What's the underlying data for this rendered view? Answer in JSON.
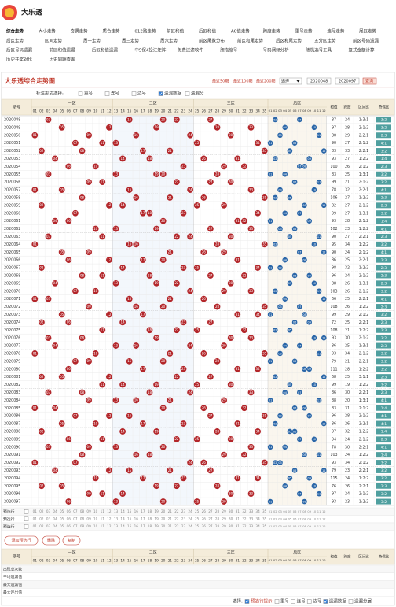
{
  "header": {
    "title": "大乐透"
  },
  "nav": [
    [
      "综合走势",
      "大小走势",
      "奇偶走势",
      "质合走势",
      "012路走势",
      "前区和值",
      "后区和值",
      "AC值走势",
      "跨度走势",
      "重号走势",
      "连号走势",
      "尾区走势"
    ],
    [
      "后区走势",
      "区间走势",
      "周一走势",
      "周三走势",
      "周六走势",
      "前区尾数分布",
      "前区和尾走势",
      "后区和尾走势",
      "五分区走势",
      "前区号码遗漏"
    ],
    [
      "后区号码遗漏",
      "前区和值遗漏",
      "后区和值遗漏",
      "中5保4投注矩阵",
      "免费过滤软件",
      "胆拖缩号",
      "号码调频分析",
      "随机选号工具",
      "复式金额计算"
    ],
    [
      "历史开奖对比",
      "历史同期查询"
    ]
  ],
  "panel": {
    "title": "大乐透综合走势图",
    "quick": [
      "最近50期",
      "最近100期",
      "最近200期"
    ],
    "select": "选择",
    "from": "2020048",
    "to": "2020097",
    "query": "查询"
  },
  "options": {
    "label": "标注形式选择:",
    "items": [
      {
        "label": "重号",
        "checked": false
      },
      {
        "label": "连号",
        "checked": false
      },
      {
        "label": "边号",
        "checked": false
      },
      {
        "label": "遗漏数据",
        "checked": true
      },
      {
        "label": "遗漏分",
        "checked": false
      }
    ]
  },
  "table": {
    "issue_header": "期号",
    "groups": [
      "一区",
      "二区",
      "三区",
      "后区"
    ],
    "front_numbers": [
      "01",
      "02",
      "03",
      "04",
      "05",
      "06",
      "07",
      "08",
      "09",
      "10",
      "11",
      "12",
      "13",
      "14",
      "15",
      "16",
      "17",
      "18",
      "19",
      "20",
      "21",
      "22",
      "23",
      "24",
      "25",
      "26",
      "27",
      "28",
      "29",
      "30",
      "31",
      "32",
      "33",
      "34",
      "35"
    ],
    "back_numbers": [
      "01",
      "02",
      "03",
      "04",
      "05",
      "06",
      "07",
      "08",
      "09",
      "10",
      "11",
      "12"
    ],
    "stat_headers": [
      "和值",
      "跨度",
      "区间比",
      "奇偶比"
    ],
    "rows": [
      {
        "issue": "2020048",
        "front": [
          "03",
          "15",
          "20",
          "22",
          "27"
        ],
        "back": [
          "02",
          "07"
        ],
        "sum": 87,
        "span": 24,
        "zone": "1:3:1",
        "odd_even": "3:2"
      },
      {
        "issue": "2020049",
        "front": [
          "05",
          "12",
          "19",
          "28",
          "33"
        ],
        "back": [
          "04",
          "10"
        ],
        "sum": 97,
        "span": 28,
        "zone": "2:1:2",
        "odd_even": "3:2"
      },
      {
        "issue": "2020050",
        "front": [
          "01",
          "09",
          "16",
          "24",
          "30"
        ],
        "back": [
          "03",
          "11"
        ],
        "sum": 80,
        "span": 29,
        "zone": "2:2:1",
        "odd_even": "2:3"
      },
      {
        "issue": "2020051",
        "front": [
          "07",
          "11",
          "13",
          "25",
          "34"
        ],
        "back": [
          "01",
          "06"
        ],
        "sum": 90,
        "span": 27,
        "zone": "2:1:2",
        "odd_even": "4:1"
      },
      {
        "issue": "2020052",
        "front": [
          "02",
          "08",
          "17",
          "21",
          "35"
        ],
        "back": [
          "05",
          "12"
        ],
        "sum": 83,
        "span": 33,
        "zone": "2:2:1",
        "odd_even": "3:2"
      },
      {
        "issue": "2020053",
        "front": [
          "04",
          "14",
          "18",
          "26",
          "31"
        ],
        "back": [
          "02",
          "09"
        ],
        "sum": 93,
        "span": 27,
        "zone": "1:2:2",
        "odd_even": "1:4"
      },
      {
        "issue": "2020054",
        "front": [
          "06",
          "10",
          "23",
          "29",
          "32"
        ],
        "back": [
          "07",
          "08"
        ],
        "sum": 100,
        "span": 26,
        "zone": "2:1:2",
        "odd_even": "2:3"
      },
      {
        "issue": "2020055",
        "front": [
          "03",
          "13",
          "19",
          "20",
          "28"
        ],
        "back": [
          "01",
          "04"
        ],
        "sum": 83,
        "span": 25,
        "zone": "1:3:1",
        "odd_even": "3:2"
      },
      {
        "issue": "2020056",
        "front": [
          "09",
          "11",
          "22",
          "27",
          "30"
        ],
        "back": [
          "06",
          "11"
        ],
        "sum": 99,
        "span": 21,
        "zone": "2:1:2",
        "odd_even": "3:2"
      },
      {
        "issue": "2020057",
        "front": [
          "01",
          "05",
          "15",
          "24",
          "33"
        ],
        "back": [
          "03",
          "10"
        ],
        "sum": 78,
        "span": 32,
        "zone": "2:2:1",
        "odd_even": "4:1"
      },
      {
        "issue": "2020058",
        "front": [
          "08",
          "16",
          "21",
          "26",
          "35"
        ],
        "back": [
          "02",
          "05"
        ],
        "sum": 106,
        "span": 27,
        "zone": "1:2:2",
        "odd_even": "2:3"
      },
      {
        "issue": "2020059",
        "front": [
          "02",
          "12",
          "14",
          "25",
          "29"
        ],
        "back": [
          "08",
          "12"
        ],
        "sum": 82,
        "span": 27,
        "zone": "2:1:2",
        "odd_even": "2:3"
      },
      {
        "issue": "2020060",
        "front": [
          "07",
          "17",
          "18",
          "23",
          "34"
        ],
        "back": [
          "04",
          "07"
        ],
        "sum": 99,
        "span": 27,
        "zone": "1:3:1",
        "odd_even": "3:2"
      },
      {
        "issue": "2020061",
        "front": [
          "04",
          "06",
          "20",
          "31",
          "32"
        ],
        "back": [
          "01",
          "09"
        ],
        "sum": 93,
        "span": 28,
        "zone": "2:1:2",
        "odd_even": "1:4"
      },
      {
        "issue": "2020062",
        "front": [
          "10",
          "13",
          "19",
          "27",
          "33"
        ],
        "back": [
          "03",
          "06"
        ],
        "sum": 102,
        "span": 23,
        "zone": "1:2:2",
        "odd_even": "4:1"
      },
      {
        "issue": "2020063",
        "front": [
          "03",
          "11",
          "22",
          "24",
          "30"
        ],
        "back": [
          "05",
          "11"
        ],
        "sum": 90,
        "span": 27,
        "zone": "2:2:1",
        "odd_even": "2:3"
      },
      {
        "issue": "2020064",
        "front": [
          "01",
          "15",
          "16",
          "28",
          "35"
        ],
        "back": [
          "02",
          "10"
        ],
        "sum": 95,
        "span": 34,
        "zone": "1:2:2",
        "odd_even": "3:2"
      },
      {
        "issue": "2020065",
        "front": [
          "05",
          "09",
          "21",
          "26",
          "29"
        ],
        "back": [
          "07",
          "12"
        ],
        "sum": 90,
        "span": 24,
        "zone": "2:1:2",
        "odd_even": "4:1"
      },
      {
        "issue": "2020066",
        "front": [
          "06",
          "12",
          "17",
          "20",
          "31"
        ],
        "back": [
          "04",
          "08"
        ],
        "sum": 86,
        "span": 25,
        "zone": "2:2:1",
        "odd_even": "2:3"
      },
      {
        "issue": "2020067",
        "front": [
          "02",
          "14",
          "23",
          "25",
          "34"
        ],
        "back": [
          "01",
          "03"
        ],
        "sum": 98,
        "span": 32,
        "zone": "1:2:2",
        "odd_even": "2:3"
      },
      {
        "issue": "2020068",
        "front": [
          "08",
          "11",
          "18",
          "27",
          "32"
        ],
        "back": [
          "06",
          "09"
        ],
        "sum": 96,
        "span": 24,
        "zone": "2:1:2",
        "odd_even": "2:3"
      },
      {
        "issue": "2020069",
        "front": [
          "04",
          "13",
          "19",
          "22",
          "30"
        ],
        "back": [
          "05",
          "10"
        ],
        "sum": 88,
        "span": 26,
        "zone": "1:3:1",
        "odd_even": "2:3"
      },
      {
        "issue": "2020070",
        "front": [
          "07",
          "10",
          "24",
          "29",
          "33"
        ],
        "back": [
          "02",
          "11"
        ],
        "sum": 103,
        "span": 26,
        "zone": "2:1:2",
        "odd_even": "3:2"
      },
      {
        "issue": "2020071",
        "front": [
          "01",
          "03",
          "15",
          "21",
          "26"
        ],
        "back": [
          "04",
          "12"
        ],
        "sum": 66,
        "span": 25,
        "zone": "2:2:1",
        "odd_even": "4:1"
      },
      {
        "issue": "2020072",
        "front": [
          "09",
          "16",
          "20",
          "28",
          "35"
        ],
        "back": [
          "03",
          "07"
        ],
        "sum": 108,
        "span": 26,
        "zone": "1:2:2",
        "odd_even": "2:3"
      },
      {
        "issue": "2020073",
        "front": [
          "05",
          "12",
          "17",
          "31",
          "34"
        ],
        "back": [
          "01",
          "08"
        ],
        "sum": 99,
        "span": 29,
        "zone": "2:1:2",
        "odd_even": "3:2"
      },
      {
        "issue": "2020074",
        "front": [
          "02",
          "06",
          "14",
          "23",
          "27"
        ],
        "back": [
          "06",
          "09"
        ],
        "sum": 72,
        "span": 25,
        "zone": "2:2:1",
        "odd_even": "2:3"
      },
      {
        "issue": "2020075",
        "front": [
          "11",
          "18",
          "22",
          "25",
          "32"
        ],
        "back": [
          "02",
          "05"
        ],
        "sum": 108,
        "span": 21,
        "zone": "1:2:2",
        "odd_even": "2:3"
      },
      {
        "issue": "2020076",
        "front": [
          "03",
          "08",
          "19",
          "30",
          "33"
        ],
        "back": [
          "10",
          "12"
        ],
        "sum": 93,
        "span": 30,
        "zone": "2:1:2",
        "odd_even": "3:2"
      },
      {
        "issue": "2020077",
        "front": [
          "04",
          "13",
          "16",
          "24",
          "29"
        ],
        "back": [
          "04",
          "07"
        ],
        "sum": 86,
        "span": 25,
        "zone": "1:3:1",
        "odd_even": "2:3"
      },
      {
        "issue": "2020078",
        "front": [
          "01",
          "10",
          "21",
          "26",
          "35"
        ],
        "back": [
          "03",
          "11"
        ],
        "sum": 93,
        "span": 34,
        "zone": "2:1:2",
        "odd_even": "3:2"
      },
      {
        "issue": "2020079",
        "front": [
          "07",
          "09",
          "15",
          "20",
          "28"
        ],
        "back": [
          "01",
          "06"
        ],
        "sum": 79,
        "span": 21,
        "zone": "2:2:1",
        "odd_even": "3:2"
      },
      {
        "issue": "2020080",
        "front": [
          "06",
          "17",
          "23",
          "31",
          "34"
        ],
        "back": [
          "08",
          "09"
        ],
        "sum": 111,
        "span": 28,
        "zone": "1:2:2",
        "odd_even": "3:2"
      },
      {
        "issue": "2020081",
        "front": [
          "02",
          "05",
          "12",
          "22",
          "27"
        ],
        "back": [
          "02",
          "12"
        ],
        "sum": 68,
        "span": 25,
        "zone": "3:1:1",
        "odd_even": "2:3"
      },
      {
        "issue": "2020082",
        "front": [
          "11",
          "14",
          "19",
          "25",
          "30"
        ],
        "back": [
          "05",
          "10"
        ],
        "sum": 99,
        "span": 19,
        "zone": "1:2:2",
        "odd_even": "3:2"
      },
      {
        "issue": "2020083",
        "front": [
          "03",
          "08",
          "18",
          "24",
          "33"
        ],
        "back": [
          "04",
          "07"
        ],
        "sum": 86,
        "span": 30,
        "zone": "2:2:1",
        "odd_even": "2:3"
      },
      {
        "issue": "2020084",
        "front": [
          "09",
          "13",
          "16",
          "21",
          "29"
        ],
        "back": [
          "01",
          "11"
        ],
        "sum": 88,
        "span": 20,
        "zone": "1:3:1",
        "odd_even": "4:1"
      },
      {
        "issue": "2020085",
        "front": [
          "01",
          "04",
          "20",
          "26",
          "32"
        ],
        "back": [
          "06",
          "08"
        ],
        "sum": 83,
        "span": 31,
        "zone": "2:1:2",
        "odd_even": "1:4"
      },
      {
        "issue": "2020086",
        "front": [
          "07",
          "12",
          "15",
          "27",
          "35"
        ],
        "back": [
          "03",
          "09"
        ],
        "sum": 96,
        "span": 28,
        "zone": "2:1:2",
        "odd_even": "4:1"
      },
      {
        "issue": "2020087",
        "front": [
          "05",
          "10",
          "17",
          "23",
          "31"
        ],
        "back": [
          "02",
          "12"
        ],
        "sum": 86,
        "span": 26,
        "zone": "2:2:1",
        "odd_even": "4:1"
      },
      {
        "issue": "2020088",
        "front": [
          "02",
          "14",
          "19",
          "28",
          "34"
        ],
        "back": [
          "05",
          "06"
        ],
        "sum": 97,
        "span": 32,
        "zone": "1:2:2",
        "odd_even": "1:4"
      },
      {
        "issue": "2020089",
        "front": [
          "06",
          "11",
          "22",
          "25",
          "30"
        ],
        "back": [
          "07",
          "10"
        ],
        "sum": 94,
        "span": 24,
        "zone": "2:1:2",
        "odd_even": "2:3"
      },
      {
        "issue": "2020090",
        "front": [
          "03",
          "09",
          "13",
          "20",
          "33"
        ],
        "back": [
          "01",
          "04"
        ],
        "sum": 78,
        "span": 30,
        "zone": "2:2:1",
        "odd_even": "4:1"
      },
      {
        "issue": "2020091",
        "front": [
          "08",
          "16",
          "18",
          "29",
          "32"
        ],
        "back": [
          "08",
          "11"
        ],
        "sum": 103,
        "span": 24,
        "zone": "1:2:2",
        "odd_even": "1:4"
      },
      {
        "issue": "2020092",
        "front": [
          "01",
          "07",
          "24",
          "26",
          "35"
        ],
        "back": [
          "02",
          "03"
        ],
        "sum": 93,
        "span": 34,
        "zone": "2:1:2",
        "odd_even": "3:2"
      },
      {
        "issue": "2020093",
        "front": [
          "04",
          "12",
          "15",
          "21",
          "27"
        ],
        "back": [
          "06",
          "12"
        ],
        "sum": 79,
        "span": 23,
        "zone": "2:2:1",
        "odd_even": "3:2"
      },
      {
        "issue": "2020094",
        "front": [
          "10",
          "17",
          "23",
          "31",
          "34"
        ],
        "back": [
          "05",
          "09"
        ],
        "sum": 115,
        "span": 24,
        "zone": "1:2:2",
        "odd_even": "3:2"
      },
      {
        "issue": "2020095",
        "front": [
          "02",
          "05",
          "19",
          "22",
          "28"
        ],
        "back": [
          "04",
          "10"
        ],
        "sum": 76,
        "span": 26,
        "zone": "2:2:1",
        "odd_even": "2:3"
      },
      {
        "issue": "2020096",
        "front": [
          "09",
          "11",
          "14",
          "30",
          "33"
        ],
        "back": [
          "07",
          "11"
        ],
        "sum": 97,
        "span": 24,
        "zone": "2:1:2",
        "odd_even": "3:2"
      },
      {
        "issue": "2020097",
        "front": [
          "06",
          "13",
          "20",
          "25",
          "29"
        ],
        "back": [
          "01",
          "08"
        ],
        "sum": 93,
        "span": 23,
        "zone": "1:2:2",
        "odd_even": "3:2"
      }
    ]
  },
  "preselect": {
    "label": "预选行"
  },
  "buttons": [
    "添加预选行",
    "删除",
    "复制"
  ],
  "stats": {
    "labels": [
      "出现总次数",
      "平均遗漏值",
      "最大遗漏值",
      "最大连出值"
    ]
  },
  "bottom": {
    "label": "选择:",
    "items": [
      {
        "label": "预选行提示",
        "checked": true
      },
      {
        "label": "重号",
        "checked": false
      },
      {
        "label": "连号",
        "checked": false
      },
      {
        "label": "边号",
        "checked": false
      },
      {
        "label": "遗漏数据",
        "checked": true
      },
      {
        "label": "遗漏分层",
        "checked": false
      }
    ]
  }
}
